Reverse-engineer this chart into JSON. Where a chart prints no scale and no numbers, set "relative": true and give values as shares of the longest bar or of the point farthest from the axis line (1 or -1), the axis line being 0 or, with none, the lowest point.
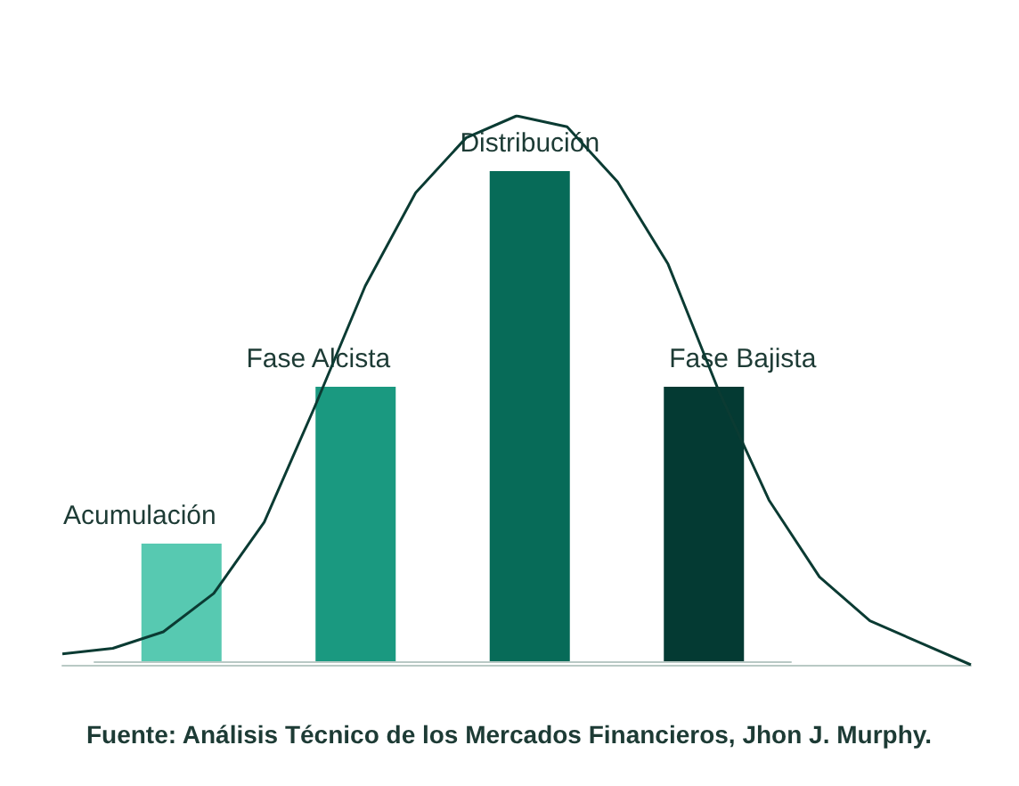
{
  "chart_data": [
    {
      "type": "bar",
      "relative": true,
      "categories": [
        "Acumulación",
        "Fase Alcista",
        "Distribución",
        "Fase Bajista"
      ],
      "values": [
        0.24,
        0.56,
        1,
        0.56
      ],
      "colors": [
        "#57c9b1",
        "#1a9980",
        "#076b58",
        "#043a33"
      ],
      "annotations": [
        "Fuente: Análisis Técnico de los Mercados Financieros, Jhon J. Murphy."
      ]
    },
    {
      "type": "line",
      "relative": true,
      "marker": "none",
      "color": "#0b3b33",
      "categories": [
        null,
        null,
        null,
        null,
        null,
        null,
        null,
        null,
        null,
        null,
        null,
        null,
        null,
        null,
        null,
        null,
        null,
        null,
        null
      ],
      "values": [
        0.02,
        0.03,
        0.06,
        0.13,
        0.26,
        0.47,
        0.69,
        0.86,
        0.96,
        1,
        0.98,
        0.88,
        0.73,
        0.5,
        0.3,
        0.16,
        0.08,
        0.04,
        0
      ]
    }
  ]
}
